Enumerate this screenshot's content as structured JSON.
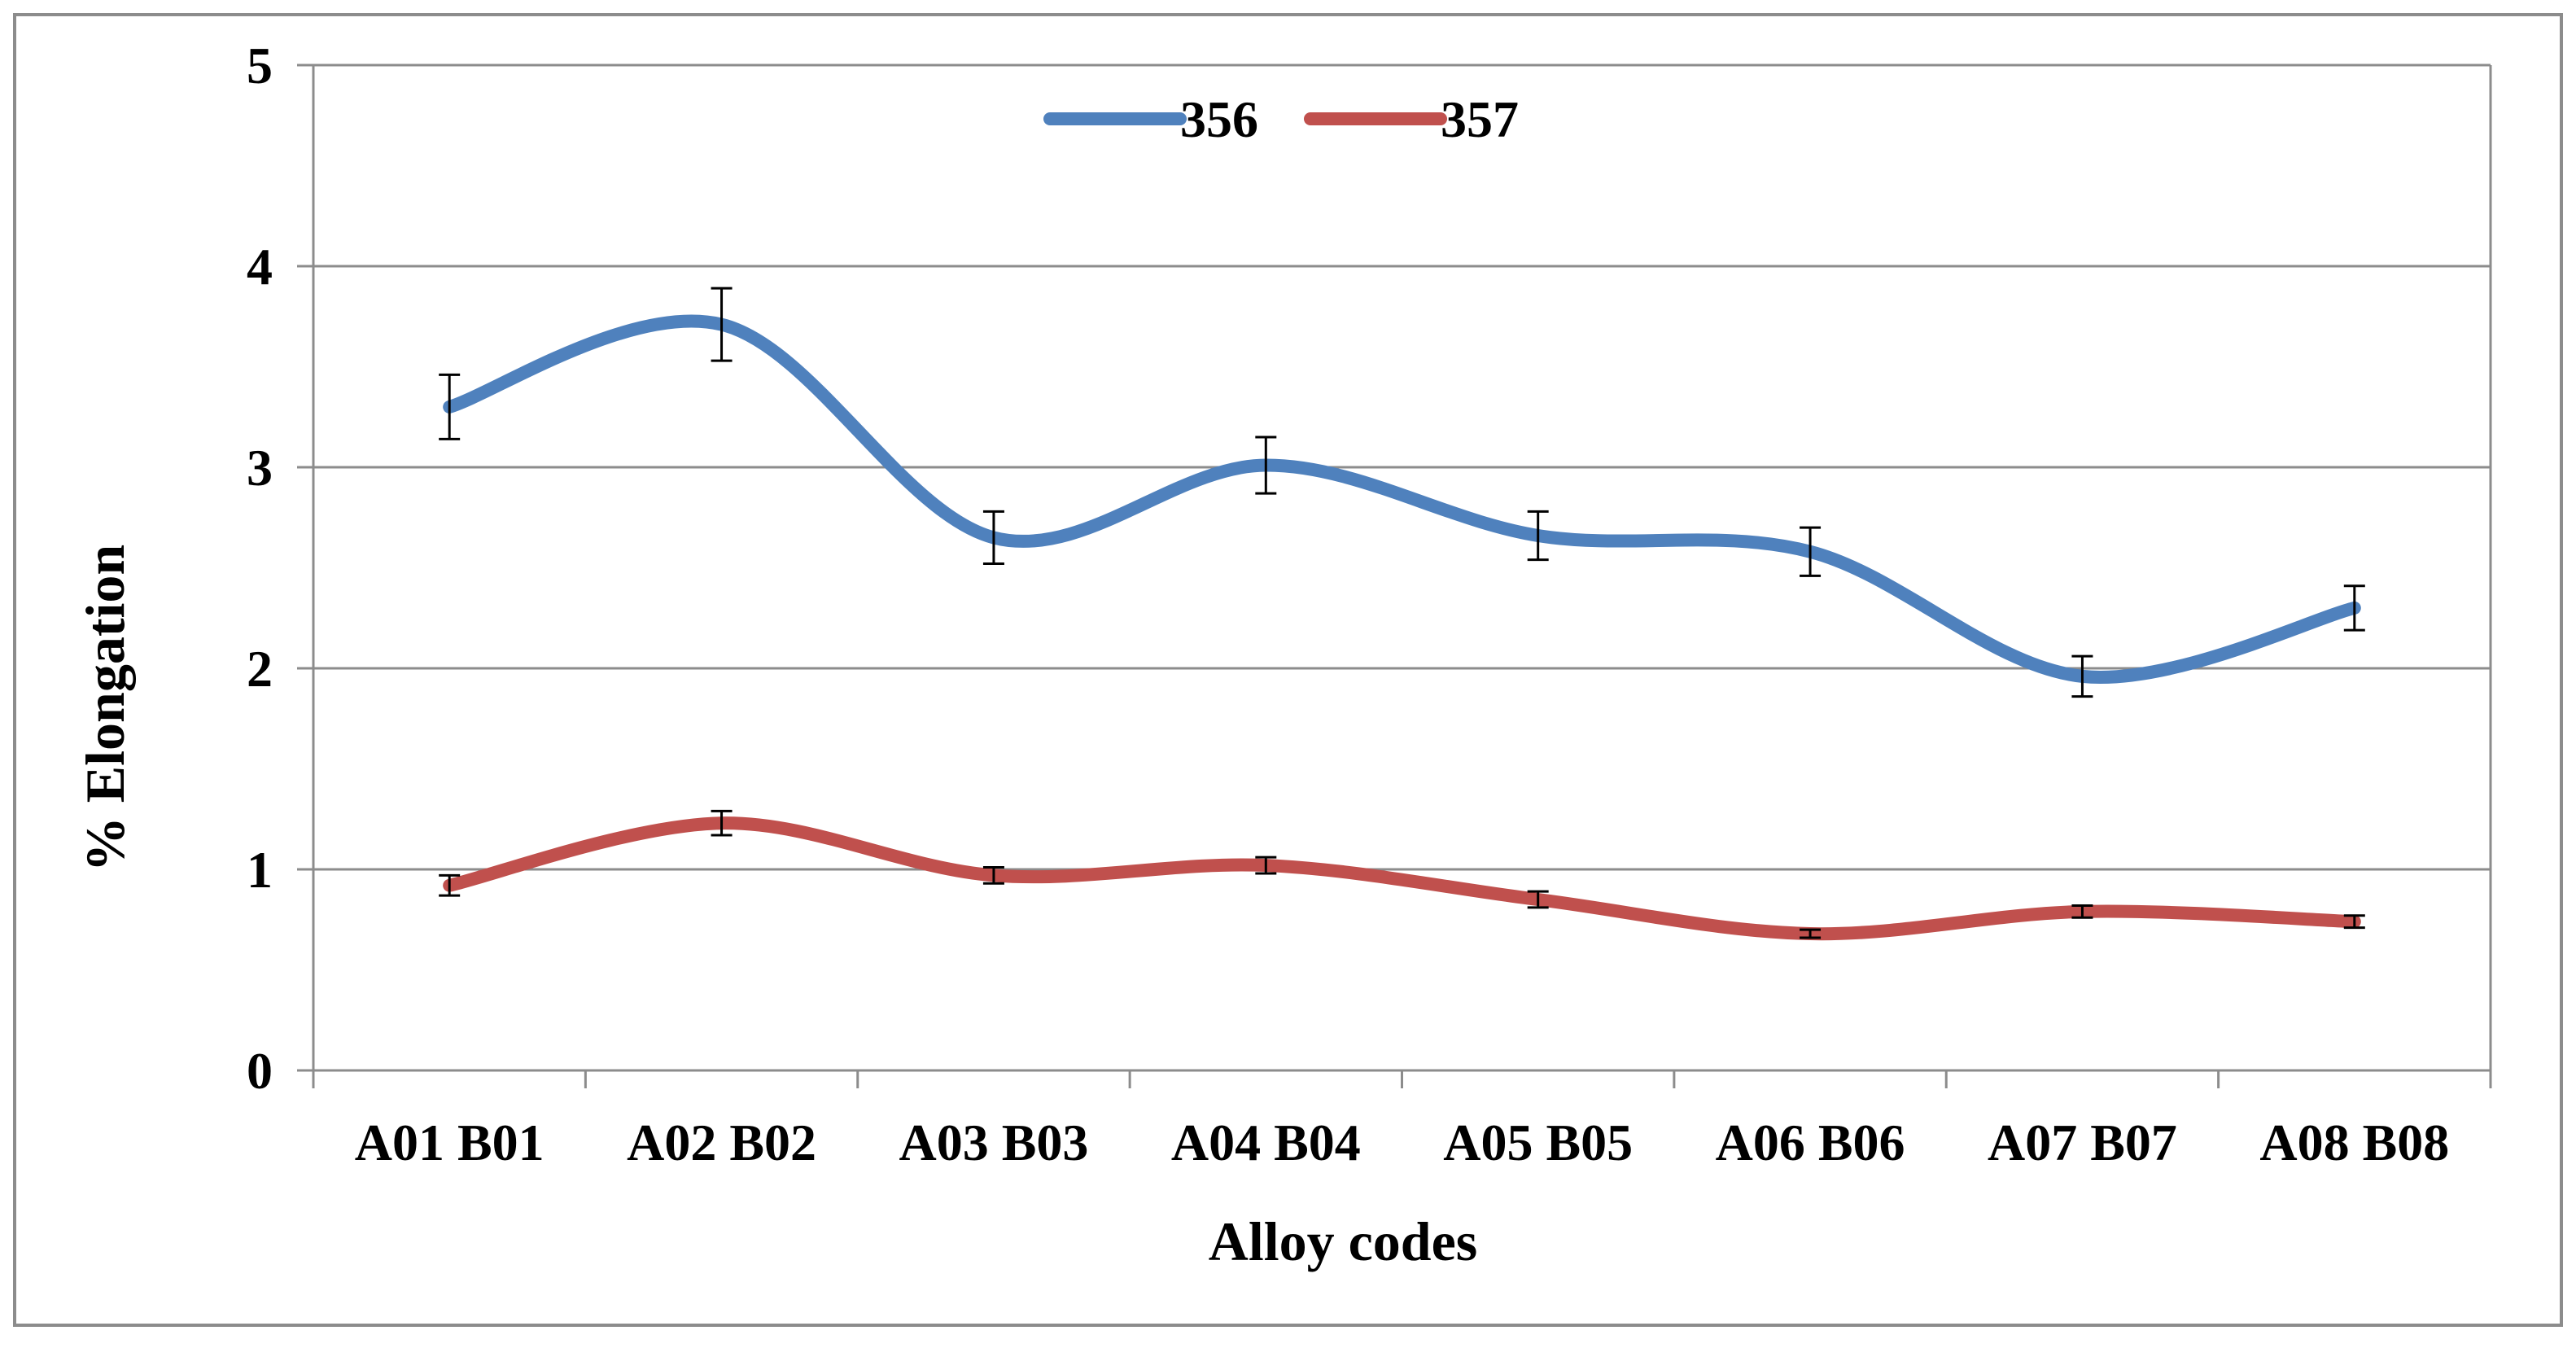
{
  "chart_data": {
    "type": "line",
    "smooth": true,
    "categories": [
      "A01 B01",
      "A02 B02",
      "A03 B03",
      "A04 B04",
      "A05 B05",
      "A06 B06",
      "A07 B07",
      "A08 B08"
    ],
    "series": [
      {
        "name": "356",
        "color": "#4F81BD",
        "values": [
          3.3,
          3.71,
          2.65,
          3.01,
          2.66,
          2.58,
          1.96,
          2.3
        ],
        "error": [
          0.16,
          0.18,
          0.13,
          0.14,
          0.12,
          0.12,
          0.1,
          0.11
        ]
      },
      {
        "name": "357",
        "color": "#C0504D",
        "values": [
          0.92,
          1.23,
          0.97,
          1.02,
          0.85,
          0.68,
          0.79,
          0.74
        ],
        "error": [
          0.05,
          0.06,
          0.04,
          0.04,
          0.04,
          0.02,
          0.03,
          0.03
        ]
      }
    ],
    "xlabel": "Alloy codes",
    "ylabel": "% Elongation",
    "ylim": [
      0,
      5
    ],
    "yticks": [
      "0",
      "1",
      "2",
      "3",
      "4",
      "5"
    ],
    "grid": "horizontal",
    "legend_position": "top-center",
    "error_bars": true
  }
}
